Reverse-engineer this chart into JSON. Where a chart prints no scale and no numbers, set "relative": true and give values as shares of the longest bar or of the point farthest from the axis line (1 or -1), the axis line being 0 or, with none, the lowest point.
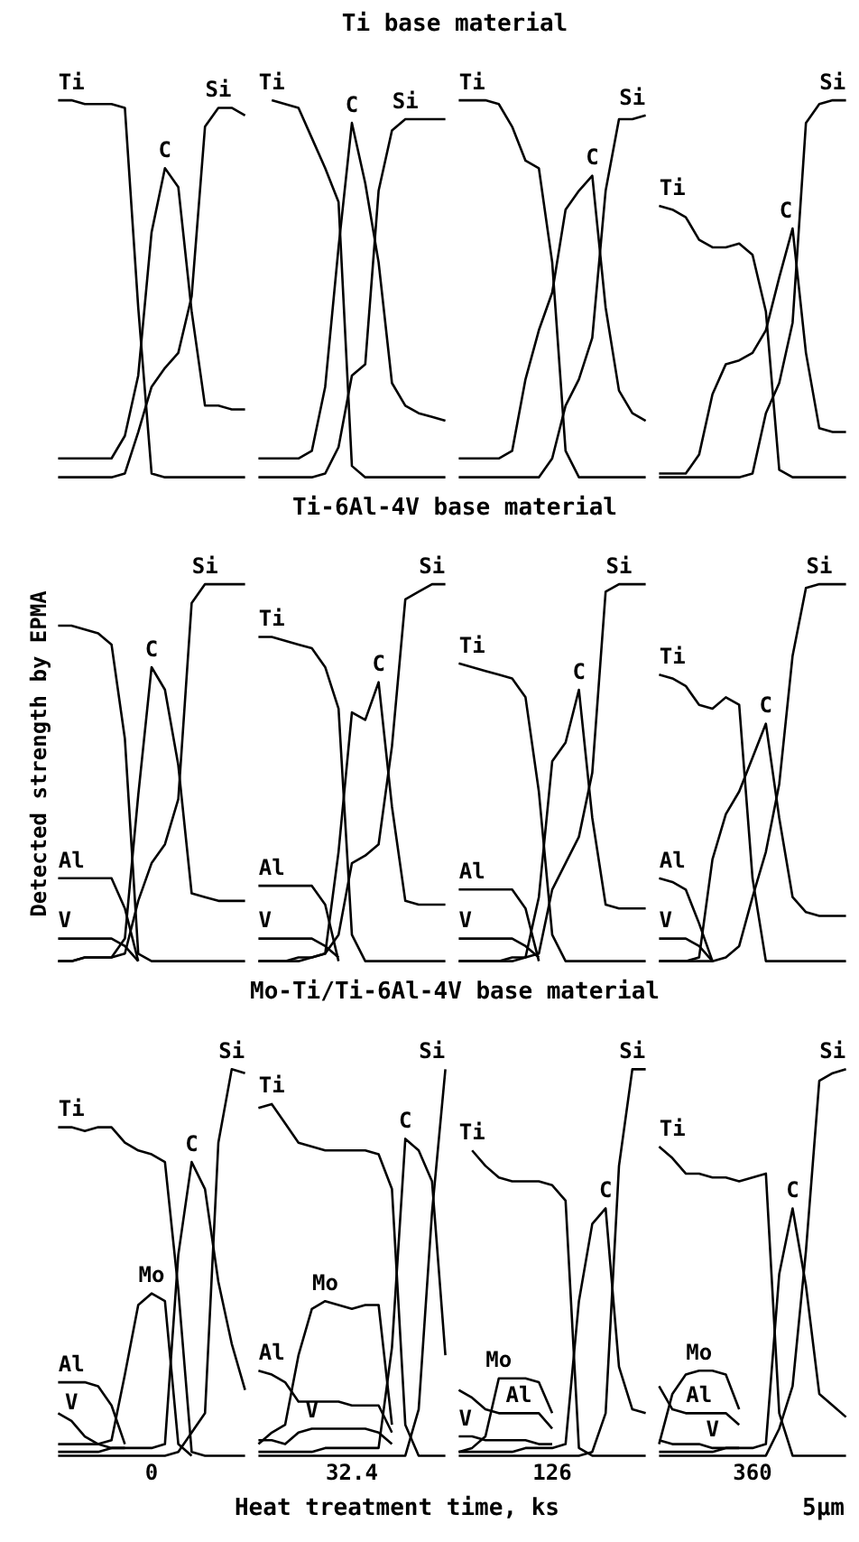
{
  "chart_data": [
    {
      "type": "other",
      "title": "Ti base material"
    },
    {
      "type": "line",
      "relative": true,
      "categories": [
        null,
        null,
        null,
        null,
        null,
        null,
        null,
        null,
        null,
        null,
        null,
        null,
        null,
        null,
        null
      ],
      "series": [
        {
          "name": "Ti",
          "color": "#000000",
          "values": [
            1.0,
            1.0,
            0.99,
            0.99,
            0.99,
            0.98,
            0.45,
            0.01,
            0,
            0,
            0,
            0,
            0,
            0,
            0
          ]
        },
        {
          "name": "C",
          "color": "#000000",
          "values": [
            0.05,
            0.05,
            0.05,
            0.05,
            0.05,
            0.11,
            0.27,
            0.65,
            0.82,
            0.77,
            0.44,
            0.19,
            0.19,
            0.18,
            0.18
          ]
        },
        {
          "name": "Si",
          "color": "#000000",
          "values": [
            0,
            0,
            0,
            0,
            0,
            0.01,
            0.12,
            0.24,
            0.29,
            0.33,
            0.48,
            0.93,
            0.98,
            0.98,
            0.96
          ]
        }
      ]
    },
    {
      "type": "line",
      "relative": true,
      "categories": [
        null,
        null,
        null,
        null,
        null,
        null,
        null,
        null,
        null,
        null,
        null,
        null,
        null,
        null,
        null
      ],
      "series": [
        {
          "name": "Ti",
          "color": "#000000",
          "values": [
            null,
            1.0,
            0.99,
            0.98,
            0.9,
            0.82,
            0.73,
            0.03,
            0,
            0,
            0,
            0,
            0,
            0,
            0
          ]
        },
        {
          "name": "C",
          "color": "#000000",
          "values": [
            0.05,
            0.05,
            0.05,
            0.05,
            0.07,
            0.24,
            0.61,
            0.94,
            0.78,
            0.57,
            0.25,
            0.19,
            0.17,
            0.16,
            0.15
          ]
        },
        {
          "name": "Si",
          "color": "#000000",
          "values": [
            0,
            0,
            0,
            0,
            0,
            0.01,
            0.08,
            0.27,
            0.3,
            0.76,
            0.92,
            0.95,
            0.95,
            0.95,
            0.95
          ]
        }
      ]
    },
    {
      "type": "line",
      "relative": true,
      "categories": [
        null,
        null,
        null,
        null,
        null,
        null,
        null,
        null,
        null,
        null,
        null,
        null,
        null,
        null,
        null
      ],
      "series": [
        {
          "name": "Ti",
          "color": "#000000",
          "values": [
            1.0,
            1.0,
            1.0,
            0.99,
            0.93,
            0.84,
            0.82,
            0.57,
            0.07,
            0,
            0,
            0,
            0,
            0,
            0
          ]
        },
        {
          "name": "C",
          "color": "#000000",
          "values": [
            0.05,
            0.05,
            0.05,
            0.05,
            0.07,
            0.26,
            0.39,
            0.49,
            0.71,
            0.76,
            0.8,
            0.45,
            0.23,
            0.17,
            0.15
          ]
        },
        {
          "name": "Si",
          "color": "#000000",
          "values": [
            0,
            0,
            0,
            0,
            0,
            0,
            0,
            0.05,
            0.19,
            0.26,
            0.37,
            0.76,
            0.95,
            0.95,
            0.96
          ]
        }
      ]
    },
    {
      "type": "line",
      "relative": true,
      "categories": [
        null,
        null,
        null,
        null,
        null,
        null,
        null,
        null,
        null,
        null,
        null,
        null,
        null,
        null,
        null
      ],
      "series": [
        {
          "name": "Ti",
          "color": "#000000",
          "values": [
            0.72,
            0.71,
            0.69,
            0.63,
            0.61,
            0.61,
            0.62,
            0.59,
            0.44,
            0.02,
            0,
            0,
            0,
            0,
            0
          ]
        },
        {
          "name": "C",
          "color": "#000000",
          "values": [
            0.01,
            0.01,
            0.01,
            0.06,
            0.22,
            0.3,
            0.31,
            0.33,
            0.39,
            0.53,
            0.66,
            0.33,
            0.13,
            0.12,
            0.12
          ]
        },
        {
          "name": "Si",
          "color": "#000000",
          "values": [
            0,
            0,
            0,
            0,
            0,
            0,
            0,
            0.01,
            0.17,
            0.25,
            0.41,
            0.94,
            0.99,
            1.0,
            1.0
          ]
        }
      ]
    },
    {
      "type": "other",
      "title": "Ti-6Al-4V base material"
    },
    {
      "type": "line",
      "ylabel": "Detected strength by EPMA",
      "relative": true,
      "categories": [
        null,
        null,
        null,
        null,
        null,
        null,
        null,
        null,
        null,
        null,
        null,
        null,
        null,
        null,
        null
      ],
      "series": [
        {
          "color": "#000000",
          "values": [
            0.89,
            0.89,
            0.88,
            0.87,
            0.84,
            0.59,
            0.02,
            0,
            0,
            0,
            0,
            0,
            0,
            0,
            0
          ]
        },
        {
          "name": "C",
          "color": "#000000",
          "values": [
            0,
            0,
            0.01,
            0.01,
            0.01,
            0.06,
            0.44,
            0.78,
            0.72,
            0.52,
            0.18,
            0.17,
            0.16,
            0.16,
            0.16
          ]
        },
        {
          "name": "Si",
          "color": "#000000",
          "values": [
            0,
            0,
            0.01,
            0.01,
            0.01,
            0.02,
            0.16,
            0.26,
            0.31,
            0.43,
            0.95,
            1.0,
            1.0,
            1.0,
            1.0
          ]
        },
        {
          "name": "Al",
          "color": "#000000",
          "values": [
            0.22,
            0.22,
            0.22,
            0.22,
            0.22,
            0.14,
            0,
            null,
            null,
            null,
            null,
            null,
            null,
            null,
            null
          ]
        },
        {
          "name": "V",
          "color": "#000000",
          "values": [
            0.06,
            0.06,
            0.06,
            0.06,
            0.06,
            0.04,
            0,
            null,
            null,
            null,
            null,
            null,
            null,
            null,
            null
          ]
        }
      ]
    },
    {
      "type": "line",
      "relative": true,
      "categories": [
        null,
        null,
        null,
        null,
        null,
        null,
        null,
        null,
        null,
        null,
        null,
        null,
        null,
        null,
        null
      ],
      "series": [
        {
          "name": "Ti",
          "color": "#000000",
          "values": [
            0.86,
            0.86,
            0.85,
            0.84,
            0.83,
            0.78,
            0.67,
            0.07,
            0,
            0,
            0,
            0,
            0,
            0,
            0
          ]
        },
        {
          "name": "C",
          "color": "#000000",
          "values": [
            0,
            0,
            0,
            0,
            0.01,
            0.02,
            0.29,
            0.66,
            0.64,
            0.74,
            0.41,
            0.16,
            0.15,
            0.15,
            0.15
          ]
        },
        {
          "name": "Si",
          "color": "#000000",
          "values": [
            0,
            0,
            0,
            0.01,
            0.01,
            0.02,
            0.07,
            0.26,
            0.28,
            0.31,
            0.57,
            0.96,
            0.98,
            1.0,
            1.0
          ]
        },
        {
          "name": "Al",
          "color": "#000000",
          "values": [
            0.2,
            0.2,
            0.2,
            0.2,
            0.2,
            0.15,
            0,
            null,
            null,
            null,
            null,
            null,
            null,
            null,
            null
          ]
        },
        {
          "name": "V",
          "color": "#000000",
          "values": [
            0.06,
            0.06,
            0.06,
            0.06,
            0.06,
            0.04,
            0.01,
            null,
            null,
            null,
            null,
            null,
            null,
            null,
            null
          ]
        }
      ]
    },
    {
      "type": "line",
      "relative": true,
      "categories": [
        null,
        null,
        null,
        null,
        null,
        null,
        null,
        null,
        null,
        null,
        null,
        null,
        null,
        null,
        null
      ],
      "series": [
        {
          "name": "Ti",
          "color": "#000000",
          "values": [
            0.79,
            0.78,
            0.77,
            0.76,
            0.75,
            0.7,
            0.45,
            0.07,
            0,
            0,
            0,
            0,
            0,
            0,
            0
          ]
        },
        {
          "name": "C",
          "color": "#000000",
          "values": [
            0,
            0,
            0,
            0,
            0,
            0.01,
            0.17,
            0.53,
            0.58,
            0.72,
            0.38,
            0.15,
            0.14,
            0.14,
            0.14
          ]
        },
        {
          "name": "Si",
          "color": "#000000",
          "values": [
            0,
            0,
            0,
            0,
            0.01,
            0.01,
            0.02,
            0.19,
            0.26,
            0.33,
            0.5,
            0.98,
            1.0,
            1.0,
            1.0
          ]
        },
        {
          "name": "Al",
          "color": "#000000",
          "values": [
            0.19,
            0.19,
            0.19,
            0.19,
            0.19,
            0.14,
            0,
            null,
            null,
            null,
            null,
            null,
            null,
            null,
            null
          ]
        },
        {
          "name": "V",
          "color": "#000000",
          "values": [
            0.06,
            0.06,
            0.06,
            0.06,
            0.06,
            0.04,
            0.01,
            null,
            null,
            null,
            null,
            null,
            null,
            null,
            null
          ]
        }
      ]
    },
    {
      "type": "line",
      "relative": true,
      "categories": [
        null,
        null,
        null,
        null,
        null,
        null,
        null,
        null,
        null,
        null,
        null,
        null,
        null,
        null,
        null
      ],
      "series": [
        {
          "name": "Ti",
          "color": "#000000",
          "values": [
            0.76,
            0.75,
            0.73,
            0.68,
            0.67,
            0.7,
            0.68,
            0.22,
            0,
            0,
            0,
            0,
            0,
            0,
            0
          ]
        },
        {
          "name": "C",
          "color": "#000000",
          "values": [
            0,
            0,
            0,
            0.01,
            0.27,
            0.39,
            0.45,
            0.54,
            0.63,
            0.38,
            0.17,
            0.13,
            0.12,
            0.12,
            0.12
          ]
        },
        {
          "name": "Si",
          "color": "#000000",
          "values": [
            0,
            0,
            0,
            0,
            0,
            0.01,
            0.04,
            0.17,
            0.29,
            0.47,
            0.81,
            0.99,
            1.0,
            1.0,
            1.0
          ]
        },
        {
          "name": "Al",
          "color": "#000000",
          "values": [
            0.22,
            0.21,
            0.19,
            0.1,
            0,
            null,
            null,
            null,
            null,
            null,
            null,
            null,
            null,
            null,
            null
          ]
        },
        {
          "name": "V",
          "color": "#000000",
          "values": [
            0.06,
            0.06,
            0.06,
            0.04,
            0,
            null,
            null,
            null,
            null,
            null,
            null,
            null,
            null,
            null,
            null
          ]
        }
      ]
    },
    {
      "type": "other",
      "title": "Mo-Ti/Ti-6Al-4V base material"
    },
    {
      "type": "line",
      "xlabel": "0",
      "relative": true,
      "categories": [
        null,
        null,
        null,
        null,
        null,
        null,
        null,
        null,
        null,
        null,
        null,
        null,
        null,
        null,
        null
      ],
      "series": [
        {
          "name": "Ti",
          "color": "#000000",
          "values": [
            0.85,
            0.85,
            0.84,
            0.85,
            0.85,
            0.81,
            0.79,
            0.78,
            0.76,
            0.43,
            0.01,
            0,
            0,
            0,
            0
          ]
        },
        {
          "name": "C",
          "color": "#000000",
          "values": [
            0.01,
            0.01,
            0.01,
            0.01,
            0.02,
            0.02,
            0.02,
            0.02,
            0.03,
            0.52,
            0.76,
            0.69,
            0.45,
            0.29,
            0.17
          ]
        },
        {
          "name": "Si",
          "color": "#000000",
          "values": [
            0,
            0,
            0,
            0,
            0,
            0,
            0,
            0,
            0,
            0.01,
            0.06,
            0.11,
            0.81,
            1.0,
            0.99
          ]
        },
        {
          "name": "Mo",
          "color": "#000000",
          "values": [
            0.03,
            0.03,
            0.03,
            0.03,
            0.04,
            0.21,
            0.39,
            0.42,
            0.4,
            0.03,
            0,
            null,
            null,
            null,
            null
          ]
        },
        {
          "name": "Al",
          "color": "#000000",
          "values": [
            0.19,
            0.19,
            0.19,
            0.18,
            0.13,
            0.03,
            null,
            null,
            null,
            null,
            null,
            null,
            null,
            null,
            null
          ]
        },
        {
          "name": "V",
          "color": "#000000",
          "values": [
            0.11,
            0.09,
            0.05,
            0.03,
            0.02,
            0.02,
            null,
            null,
            null,
            null,
            null,
            null,
            null,
            null,
            null
          ]
        }
      ]
    },
    {
      "type": "line",
      "xlabel": "32.4",
      "relative": true,
      "categories": [
        null,
        null,
        null,
        null,
        null,
        null,
        null,
        null,
        null,
        null,
        null,
        null,
        null,
        null,
        null
      ],
      "series": [
        {
          "name": "Ti",
          "color": "#000000",
          "values": [
            0.9,
            0.91,
            0.86,
            0.81,
            0.8,
            0.79,
            0.79,
            0.79,
            0.79,
            0.78,
            0.69,
            0.08,
            0,
            0,
            0
          ]
        },
        {
          "name": "C",
          "color": "#000000",
          "values": [
            0.01,
            0.01,
            0.01,
            0.01,
            0.01,
            0.02,
            0.02,
            0.02,
            0.02,
            0.02,
            0.28,
            0.82,
            0.79,
            0.71,
            0.26
          ]
        },
        {
          "name": "Si",
          "color": "#000000",
          "values": [
            0,
            0,
            0,
            0,
            0,
            0,
            0,
            0,
            0,
            0,
            0,
            0,
            0.12,
            0.63,
            1.0
          ]
        },
        {
          "name": "Mo",
          "color": "#000000",
          "values": [
            0.03,
            0.06,
            0.08,
            0.26,
            0.38,
            0.4,
            0.39,
            0.38,
            0.39,
            0.39,
            0.08,
            null,
            null,
            null,
            null
          ]
        },
        {
          "name": "Al",
          "color": "#000000",
          "values": [
            0.22,
            0.21,
            0.19,
            0.14,
            0.14,
            0.14,
            0.14,
            0.13,
            0.13,
            0.13,
            0.06,
            null,
            null,
            null,
            null
          ]
        },
        {
          "name": "V",
          "color": "#000000",
          "values": [
            0.04,
            0.04,
            0.03,
            0.06,
            0.07,
            0.07,
            0.07,
            0.07,
            0.07,
            0.06,
            0.03,
            null,
            null,
            null,
            null
          ]
        }
      ]
    },
    {
      "type": "line",
      "xlabel": "126",
      "relative": true,
      "categories": [
        null,
        null,
        null,
        null,
        null,
        null,
        null,
        null,
        null,
        null,
        null,
        null,
        null,
        null,
        null
      ],
      "series": [
        {
          "name": "Ti",
          "color": "#000000",
          "values": [
            null,
            0.79,
            0.75,
            0.72,
            0.71,
            0.71,
            0.71,
            0.7,
            0.66,
            0.02,
            0,
            0,
            0,
            0,
            0
          ]
        },
        {
          "name": "C",
          "color": "#000000",
          "values": [
            0.01,
            0.01,
            0.01,
            0.01,
            0.01,
            0.02,
            0.02,
            0.02,
            0.03,
            0.4,
            0.6,
            0.64,
            0.23,
            0.12,
            0.11
          ]
        },
        {
          "name": "Si",
          "color": "#000000",
          "values": [
            0,
            0,
            0,
            0,
            0,
            0,
            0,
            0,
            0,
            0,
            0.01,
            0.11,
            0.75,
            1.0,
            1.0
          ]
        },
        {
          "name": "Mo",
          "color": "#000000",
          "values": [
            0.01,
            0.02,
            0.05,
            0.2,
            0.2,
            0.2,
            0.19,
            0.11,
            null,
            null,
            null,
            null,
            null,
            null,
            null
          ]
        },
        {
          "name": "Al",
          "color": "#000000",
          "values": [
            0.17,
            0.15,
            0.12,
            0.11,
            0.11,
            0.11,
            0.11,
            0.07,
            null,
            null,
            null,
            null,
            null,
            null,
            null
          ]
        },
        {
          "name": "V",
          "color": "#000000",
          "values": [
            0.05,
            0.05,
            0.04,
            0.04,
            0.04,
            0.04,
            0.03,
            0.03,
            null,
            null,
            null,
            null,
            null,
            null,
            null
          ]
        }
      ]
    },
    {
      "type": "line",
      "xlabel": "360",
      "relative": true,
      "categories": [
        null,
        null,
        null,
        null,
        null,
        null,
        null,
        null,
        null,
        null,
        null,
        null,
        null,
        null,
        null
      ],
      "series": [
        {
          "name": "Ti",
          "color": "#000000",
          "values": [
            0.8,
            0.77,
            0.73,
            0.73,
            0.72,
            0.72,
            0.71,
            0.72,
            0.73,
            0.11,
            0,
            0,
            0,
            0,
            0
          ]
        },
        {
          "name": "C",
          "color": "#000000",
          "values": [
            0.01,
            0.01,
            0.01,
            0.01,
            0.01,
            0.02,
            0.02,
            0.02,
            0.03,
            0.47,
            0.64,
            0.44,
            0.16,
            0.13,
            0.1
          ]
        },
        {
          "name": "Si",
          "color": "#000000",
          "values": [
            0,
            0,
            0,
            0,
            0,
            0,
            0,
            0,
            0,
            0.07,
            0.18,
            0.53,
            0.97,
            0.99,
            1.0
          ]
        },
        {
          "name": "Mo",
          "color": "#000000",
          "values": [
            0.03,
            0.16,
            0.21,
            0.22,
            0.22,
            0.21,
            0.12,
            null,
            null,
            null,
            null,
            null,
            null,
            null,
            null
          ]
        },
        {
          "name": "Al",
          "color": "#000000",
          "values": [
            0.18,
            0.12,
            0.11,
            0.11,
            0.11,
            0.11,
            0.08,
            null,
            null,
            null,
            null,
            null,
            null,
            null,
            null
          ]
        },
        {
          "name": "V",
          "color": "#000000",
          "values": [
            0.04,
            0.03,
            0.03,
            0.03,
            0.02,
            0.02,
            0.02,
            null,
            null,
            null,
            null,
            null,
            null,
            null,
            null
          ]
        }
      ]
    },
    {
      "type": "other",
      "title": "Heat treatment time, ks",
      "annotations": [
        "5μm"
      ]
    }
  ]
}
